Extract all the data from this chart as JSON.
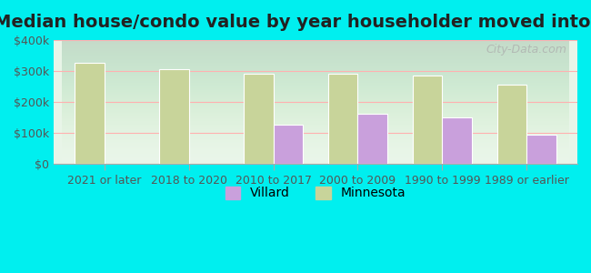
{
  "title": "Median house/condo value by year householder moved into unit",
  "categories": [
    "2021 or later",
    "2018 to 2020",
    "2010 to 2017",
    "2000 to 2009",
    "1990 to 1999",
    "1989 or earlier"
  ],
  "villard_values": [
    null,
    null,
    127000,
    162000,
    150000,
    95000
  ],
  "minnesota_values": [
    325000,
    305000,
    290000,
    290000,
    285000,
    255000
  ],
  "villard_color": "#c9a0dc",
  "minnesota_color": "#c8d49a",
  "background_color": "#00efef",
  "plot_bg_start": "#f0fff0",
  "plot_bg_end": "#ffffff",
  "ylim": [
    0,
    400000
  ],
  "yticks": [
    0,
    100000,
    200000,
    300000,
    400000
  ],
  "ytick_labels": [
    "$0",
    "$100k",
    "$200k",
    "$300k",
    "$400k"
  ],
  "bar_width": 0.35,
  "title_fontsize": 14,
  "tick_fontsize": 9,
  "legend_fontsize": 10,
  "watermark": "City-Data.com"
}
